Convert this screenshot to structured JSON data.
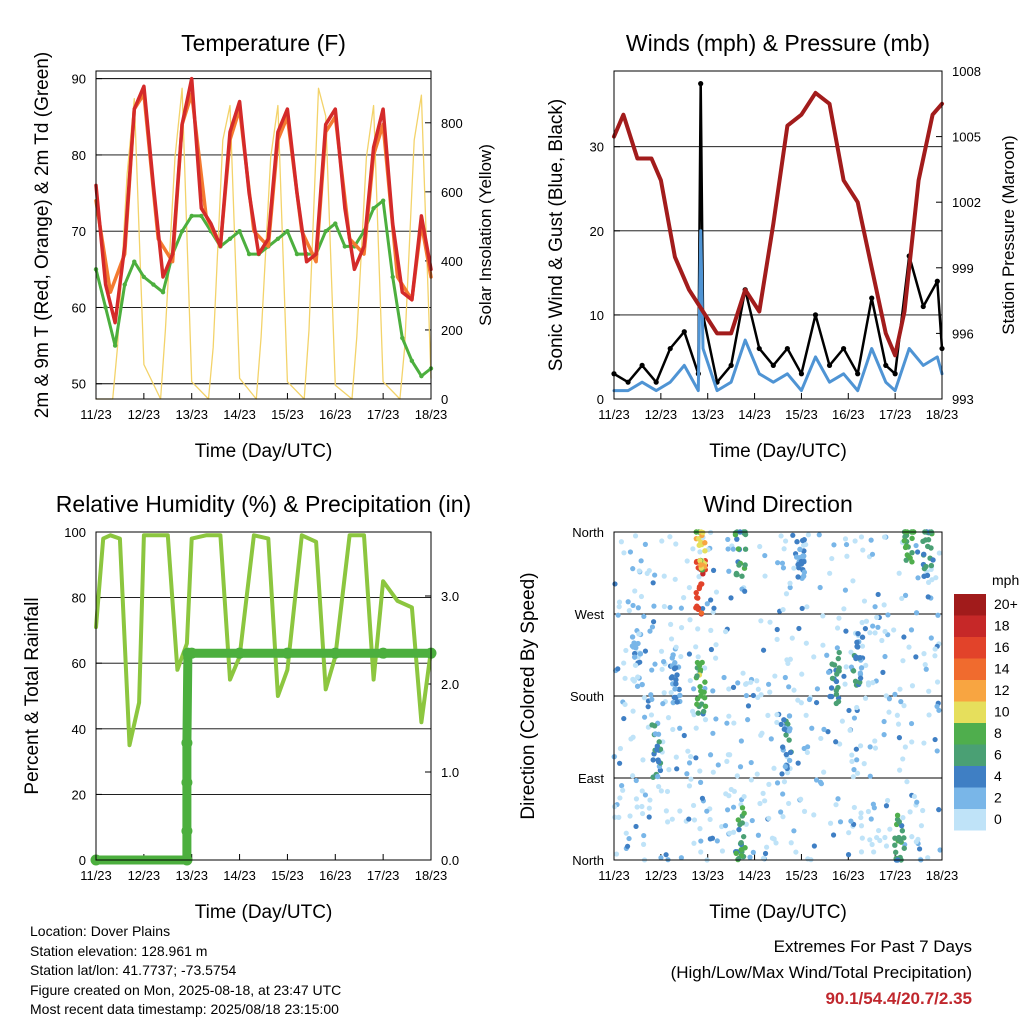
{
  "chart_data": [
    {
      "type": "line",
      "title": "Temperature (F)",
      "xlabel": "Time (Day/UTC)",
      "ylabel": "2m & 9m T (Red, Orange) & 2m Td (Green)",
      "y2label": "Solar Insolation (Yellow)",
      "x_ticks": [
        "11/23",
        "12/23",
        "13/23",
        "14/23",
        "15/23",
        "16/23",
        "17/23",
        "18/23"
      ],
      "ylim": [
        48,
        91
      ],
      "y_ticks": [
        50,
        60,
        70,
        80,
        90
      ],
      "y2lim": [
        0,
        950
      ],
      "y2_ticks": [
        0,
        200,
        400,
        600,
        800
      ],
      "grid": "horizontal",
      "series": [
        {
          "name": "2m T",
          "color": "#d42a2a",
          "x": [
            11.0,
            11.2,
            11.4,
            11.6,
            11.8,
            12.0,
            12.2,
            12.4,
            12.6,
            12.8,
            13.0,
            13.2,
            13.4,
            13.6,
            13.8,
            14.0,
            14.2,
            14.4,
            14.6,
            14.8,
            15.0,
            15.2,
            15.4,
            15.6,
            15.8,
            16.0,
            16.2,
            16.4,
            16.6,
            16.8,
            17.0,
            17.2,
            17.4,
            17.6,
            17.8,
            18.0
          ],
          "values": [
            76,
            63,
            58,
            68,
            86,
            89,
            76,
            64,
            67,
            84,
            90,
            73,
            71,
            68,
            83,
            87,
            75,
            67,
            69,
            83,
            86,
            75,
            66,
            67,
            84,
            86,
            73,
            65,
            68,
            81,
            86,
            71,
            62,
            61,
            72,
            65
          ]
        },
        {
          "name": "9m T",
          "color": "#f47a30",
          "x": [
            11.0,
            11.3,
            11.6,
            11.8,
            12.0,
            12.3,
            12.6,
            12.8,
            13.0,
            13.3,
            13.6,
            13.8,
            14.0,
            14.3,
            14.6,
            14.8,
            15.0,
            15.3,
            15.6,
            15.8,
            16.0,
            16.3,
            16.6,
            16.8,
            17.0,
            17.3,
            17.6,
            17.8,
            18.0
          ],
          "values": [
            74,
            62,
            67,
            86,
            88,
            69,
            66,
            84,
            88,
            72,
            68,
            82,
            86,
            70,
            68,
            82,
            85,
            70,
            66,
            83,
            85,
            69,
            67,
            80,
            84,
            64,
            61,
            71,
            64
          ]
        },
        {
          "name": "2m Td",
          "color": "#4caf3e",
          "x": [
            11.0,
            11.2,
            11.4,
            11.6,
            11.8,
            12.0,
            12.2,
            12.4,
            12.6,
            12.8,
            13.0,
            13.2,
            13.4,
            13.6,
            13.8,
            14.0,
            14.2,
            14.4,
            14.6,
            14.8,
            15.0,
            15.2,
            15.4,
            15.6,
            15.8,
            16.0,
            16.2,
            16.4,
            16.6,
            16.8,
            17.0,
            17.2,
            17.4,
            17.6,
            17.8,
            18.0
          ],
          "values": [
            65,
            60,
            55,
            63,
            66,
            64,
            63,
            62,
            67,
            70,
            72,
            72,
            70,
            68,
            69,
            70,
            67,
            67,
            68,
            69,
            70,
            67,
            67,
            67,
            70,
            71,
            68,
            68,
            70,
            73,
            74,
            64,
            56,
            53,
            51,
            52
          ]
        },
        {
          "name": "Solar Insolation",
          "color": "#f3d36a",
          "x": [
            11.0,
            11.35,
            11.45,
            11.65,
            11.8,
            12.0,
            12.35,
            12.45,
            12.65,
            12.8,
            13.0,
            13.35,
            13.45,
            13.65,
            13.8,
            14.0,
            14.35,
            14.45,
            14.65,
            14.8,
            15.0,
            15.35,
            15.45,
            15.65,
            15.8,
            16.0,
            16.35,
            16.45,
            16.65,
            16.8,
            17.0,
            17.35,
            17.45,
            17.65,
            17.8,
            18.0
          ],
          "values": [
            0,
            0,
            150,
            650,
            870,
            100,
            0,
            200,
            700,
            900,
            50,
            0,
            150,
            750,
            850,
            60,
            0,
            180,
            700,
            850,
            50,
            0,
            200,
            900,
            820,
            40,
            0,
            180,
            700,
            850,
            50,
            0,
            150,
            750,
            880,
            60
          ]
        }
      ]
    },
    {
      "type": "line",
      "title": "Winds (mph) & Pressure (mb)",
      "xlabel": "Time (Day/UTC)",
      "ylabel": "Sonic Wind & Gust (Blue, Black)",
      "y2label": "Station Pressure (Maroon)",
      "x_ticks": [
        "11/23",
        "12/23",
        "13/23",
        "14/23",
        "15/23",
        "16/23",
        "17/23",
        "18/23"
      ],
      "ylim": [
        0,
        39
      ],
      "y_ticks": [
        0,
        10,
        20,
        30
      ],
      "y2lim": [
        993,
        1008
      ],
      "y2_ticks": [
        993,
        996,
        999,
        1002,
        1005,
        1008
      ],
      "grid": "horizontal",
      "series": [
        {
          "name": "Station Pressure",
          "color": "#a21c1c",
          "x": [
            11.0,
            11.2,
            11.5,
            11.8,
            12.0,
            12.3,
            12.6,
            12.9,
            13.2,
            13.5,
            13.8,
            14.1,
            14.4,
            14.7,
            15.0,
            15.3,
            15.6,
            15.9,
            16.2,
            16.5,
            16.8,
            17.0,
            17.2,
            17.5,
            17.8,
            18.0
          ],
          "values": [
            1005,
            1006,
            1004,
            1004,
            1003,
            999.5,
            998,
            997,
            996,
            996,
            998,
            997,
            1001,
            1005.5,
            1006,
            1007,
            1006.5,
            1003,
            1002,
            999,
            996,
            995,
            997,
            1003,
            1006,
            1006.5
          ]
        },
        {
          "name": "Sonic Wind",
          "color": "#4f94d4",
          "x": [
            11.0,
            11.3,
            11.6,
            11.9,
            12.2,
            12.5,
            12.8,
            12.85,
            12.9,
            13.2,
            13.5,
            13.8,
            14.1,
            14.4,
            14.7,
            15.0,
            15.3,
            15.6,
            15.9,
            16.2,
            16.5,
            16.8,
            17.0,
            17.3,
            17.6,
            17.9,
            18.0
          ],
          "values": [
            1,
            1,
            2,
            1,
            2,
            4,
            1,
            20,
            6,
            1,
            2,
            7,
            3,
            2,
            3,
            1,
            5,
            2,
            3,
            1,
            6,
            2,
            1,
            6,
            4,
            5,
            3
          ]
        },
        {
          "name": "Gust",
          "color": "#000000",
          "x": [
            11.0,
            11.3,
            11.6,
            11.9,
            12.2,
            12.5,
            12.8,
            12.85,
            12.9,
            13.2,
            13.5,
            13.8,
            14.1,
            14.4,
            14.7,
            15.0,
            15.3,
            15.6,
            15.9,
            16.2,
            16.5,
            16.8,
            17.0,
            17.3,
            17.6,
            17.9,
            18.0
          ],
          "values": [
            3,
            2,
            4,
            2,
            6,
            8,
            3,
            37.5,
            10,
            2,
            4,
            13,
            6,
            4,
            6,
            3,
            10,
            4,
            6,
            3,
            12,
            4,
            3,
            17,
            11,
            14,
            6
          ]
        }
      ]
    },
    {
      "type": "line",
      "title": "Relative Humidity (%) & Precipitation (in)",
      "xlabel": "Time (Day/UTC)",
      "ylabel": "Percent & Total Rainfall",
      "x_ticks": [
        "11/23",
        "12/23",
        "13/23",
        "14/23",
        "15/23",
        "16/23",
        "17/23",
        "18/23"
      ],
      "ylim": [
        0,
        100
      ],
      "y_ticks": [
        0,
        20,
        40,
        60,
        80,
        100
      ],
      "y2lim": [
        0,
        3.727
      ],
      "y2_ticks": [
        "0.0",
        "1.0",
        "2.0",
        "3.0"
      ],
      "grid": "horizontal",
      "series": [
        {
          "name": "Relative Humidity",
          "color": "#8cc63f",
          "x": [
            11.0,
            11.15,
            11.3,
            11.5,
            11.7,
            11.9,
            12.0,
            12.3,
            12.5,
            12.7,
            12.9,
            13.0,
            13.3,
            13.6,
            13.8,
            14.0,
            14.3,
            14.6,
            14.8,
            15.0,
            15.3,
            15.6,
            15.8,
            16.0,
            16.3,
            16.6,
            16.8,
            17.0,
            17.3,
            17.6,
            17.8,
            18.0
          ],
          "values": [
            71,
            98,
            99,
            98,
            35,
            48,
            99,
            99,
            99,
            58,
            66,
            98,
            99,
            99,
            55,
            62,
            99,
            98,
            50,
            58,
            99,
            97,
            52,
            62,
            99,
            99,
            55,
            85,
            79,
            77,
            42,
            64
          ]
        },
        {
          "name": "Total Rainfall",
          "color": "#4caf3e",
          "x": [
            11.0,
            12.9,
            12.9,
            12.9,
            12.9,
            12.92,
            13.0,
            14.0,
            15.0,
            16.0,
            17.0,
            18.0
          ],
          "values": [
            0,
            0,
            0.33,
            0.88,
            1.33,
            2.35,
            2.35,
            2.35,
            2.35,
            2.35,
            2.35,
            2.35
          ]
        }
      ]
    },
    {
      "type": "scatter",
      "title": "Wind Direction",
      "xlabel": "Time (Day/UTC)",
      "ylabel": "Direction (Colored By Speed)",
      "x_ticks": [
        "11/23",
        "12/23",
        "13/23",
        "14/23",
        "15/23",
        "16/23",
        "17/23",
        "18/23"
      ],
      "y_ticks": [
        "North",
        "East",
        "South",
        "West",
        "North"
      ],
      "ylim": [
        0,
        360
      ],
      "grid": "horizontal",
      "legend": {
        "title": "mph",
        "labels": [
          "20+",
          "18",
          "16",
          "14",
          "12",
          "10",
          "8",
          "6",
          "4",
          "2",
          "0"
        ],
        "colors": [
          "#a11b1b",
          "#c62828",
          "#e2432a",
          "#f06b2e",
          "#f8a541",
          "#e6df5c",
          "#4fae4d",
          "#4aa074",
          "#3f7fc4",
          "#79b6e8",
          "#bfe3f8"
        ],
        "placement": "right"
      },
      "clusters": [
        {
          "x": 11.5,
          "dir": 220,
          "speed": 1
        },
        {
          "x": 11.9,
          "dir": 120,
          "speed": 4
        },
        {
          "x": 12.3,
          "dir": 200,
          "speed": 3
        },
        {
          "x": 12.85,
          "dir": 300,
          "speed": 16
        },
        {
          "x": 12.85,
          "dir": 190,
          "speed": 7
        },
        {
          "x": 12.85,
          "dir": 345,
          "speed": 10
        },
        {
          "x": 13.7,
          "dir": 340,
          "speed": 6
        },
        {
          "x": 13.7,
          "dir": 30,
          "speed": 6
        },
        {
          "x": 14.7,
          "dir": 130,
          "speed": 4
        },
        {
          "x": 15.0,
          "dir": 330,
          "speed": 3
        },
        {
          "x": 15.7,
          "dir": 200,
          "speed": 5
        },
        {
          "x": 16.2,
          "dir": 220,
          "speed": 4
        },
        {
          "x": 17.1,
          "dir": 20,
          "speed": 6
        },
        {
          "x": 17.3,
          "dir": 355,
          "speed": 7
        },
        {
          "x": 17.7,
          "dir": 340,
          "speed": 5
        }
      ]
    }
  ],
  "info": {
    "location": "Location: Dover Plains",
    "elevation": "Station elevation: 128.961 m",
    "latlon": "Station lat/lon: 41.7737; -73.5754",
    "created": "Figure created on Mon, 2025-08-18, at 23:47 UTC",
    "recent": "Most recent data timestamp: 2025/08/18 23:15:00"
  },
  "extremes": {
    "line1": "Extremes For Past 7 Days",
    "line2": "(High/Low/Max Wind/Total Precipitation)",
    "values": "90.1/54.4/20.7/2.35"
  }
}
